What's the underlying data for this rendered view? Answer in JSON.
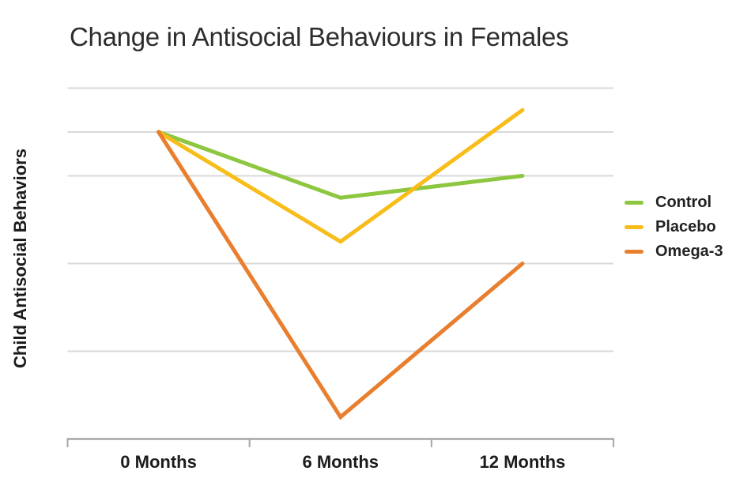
{
  "chart_data": {
    "type": "line",
    "title": "Change in Antisocial Behaviours in Females",
    "ylabel": "Child Antisocial Behaviors",
    "xlabel": "",
    "categories": [
      "0 Months",
      "6 Months",
      "12 Months"
    ],
    "series": [
      {
        "name": "Control",
        "color": "#8dc63f",
        "values": [
          7,
          5.5,
          6
        ]
      },
      {
        "name": "Placebo",
        "color": "#f8bd1a",
        "values": [
          7,
          4.5,
          7.5
        ]
      },
      {
        "name": "Omega-3",
        "color": "#e87e2e",
        "values": [
          7,
          0.5,
          4
        ]
      }
    ],
    "ylim": [
      0,
      8.3
    ],
    "gridline_values": [
      2,
      4,
      6,
      7,
      8
    ],
    "y_tick_labels": [],
    "grid": true,
    "legend_position": "right"
  },
  "colors": {
    "gridline": "#d9d9d9",
    "axis": "#a6a6a6",
    "title_text": "#2d2d2d",
    "label_text": "#1c1c1c"
  }
}
